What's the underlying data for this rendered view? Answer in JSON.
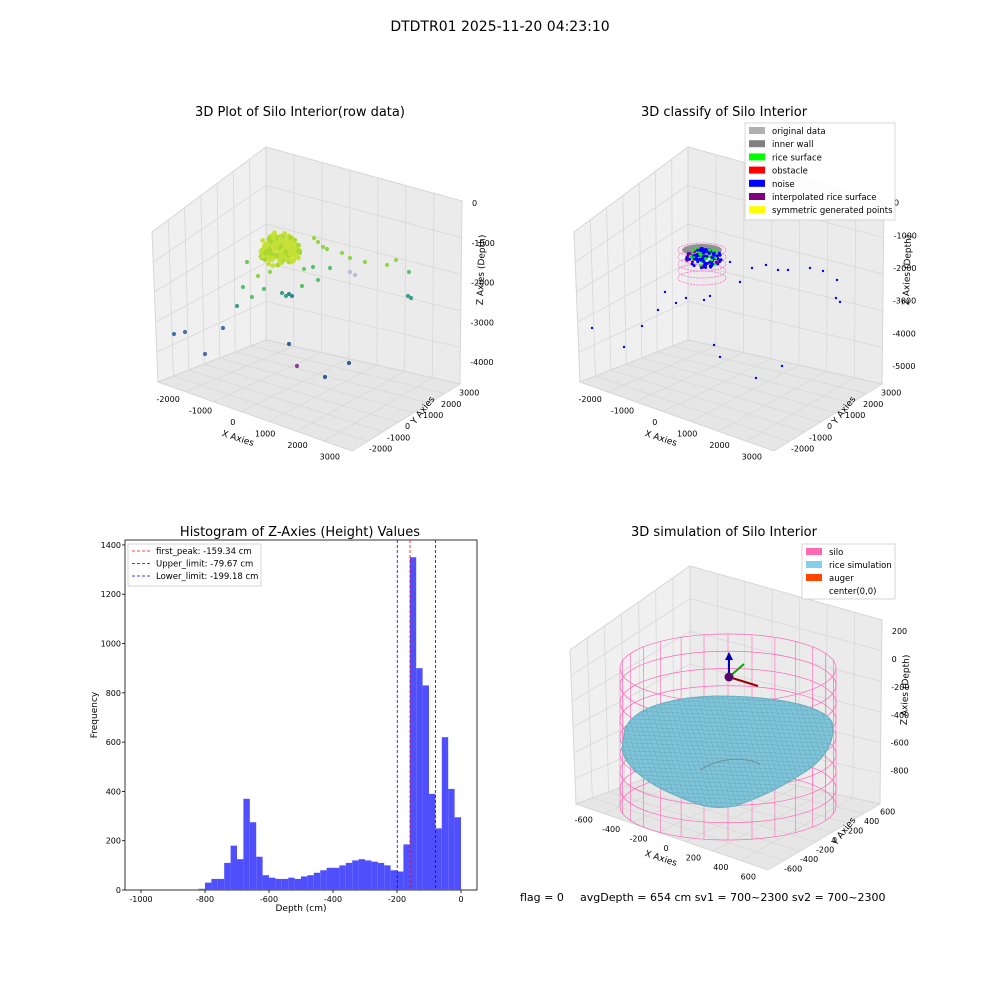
{
  "figure": {
    "suptitle": "DTDTR01 2025-11-20 04:23:10",
    "status_flag": "flag = 0",
    "status_avg": "avgDepth = 654 cm  sv1 = 700~2300  sv2 = 700~2300"
  },
  "chart_data": [
    {
      "type": "scatter",
      "subtype": "3d-scatter",
      "title": "3D Plot of Silo Interior(row data)",
      "xlabel": "X Axies",
      "ylabel": "Y Axies",
      "zlabel": "Z Axies (Depth)",
      "xticks": [
        "-2000",
        "-1000",
        "0",
        "1000",
        "2000",
        "3000"
      ],
      "yticks": [
        "-2000",
        "-1000",
        "0",
        "1000",
        "2000",
        "3000"
      ],
      "zticks": [
        "0",
        "-1000",
        "-2000",
        "-3000",
        "-4000"
      ],
      "colormap": "viridis",
      "cluster_color": "#c6e03a"
    },
    {
      "type": "scatter",
      "subtype": "3d-scatter",
      "title": "3D classify of Silo Interior",
      "xlabel": "X Axies",
      "ylabel": "Y Axies",
      "zlabel": "Z Axies (Depth)",
      "xticks": [
        "-2000",
        "-1000",
        "0",
        "1000",
        "2000",
        "3000"
      ],
      "yticks": [
        "-2000",
        "-1000",
        "0",
        "1000",
        "2000",
        "3000"
      ],
      "zticks": [
        "0",
        "-1000",
        "-2000",
        "-3000",
        "-4000",
        "-5000"
      ],
      "legend_position": "top-right",
      "legend": [
        {
          "name": "original data",
          "color": "#b0b0b0"
        },
        {
          "name": "inner wall",
          "color": "#808080"
        },
        {
          "name": "rice surface",
          "color": "#00ff00"
        },
        {
          "name": "obstacle",
          "color": "#ff0000"
        },
        {
          "name": "noise",
          "color": "#0000ff"
        },
        {
          "name": "interpolated rice surface",
          "color": "#800080"
        },
        {
          "name": "symmetric generated points",
          "color": "#ffff00"
        }
      ]
    },
    {
      "type": "bar",
      "subtype": "histogram",
      "title": "Histogram of Z-Axies (Height) Values",
      "xlabel": "Depth (cm)",
      "ylabel": "Frequency",
      "xlim": [
        -1050,
        50
      ],
      "ylim": [
        0,
        1420
      ],
      "xticks": [
        -1000,
        -800,
        -600,
        -400,
        -200,
        0
      ],
      "yticks": [
        0,
        200,
        400,
        600,
        800,
        1000,
        1200,
        1400
      ],
      "bar_color": "#4f4ffc",
      "bin_width": 20,
      "bins": [
        {
          "x": -820,
          "value": 5
        },
        {
          "x": -800,
          "value": 30
        },
        {
          "x": -780,
          "value": 45
        },
        {
          "x": -760,
          "value": 45
        },
        {
          "x": -740,
          "value": 110
        },
        {
          "x": -720,
          "value": 180
        },
        {
          "x": -700,
          "value": 125
        },
        {
          "x": -680,
          "value": 370
        },
        {
          "x": -660,
          "value": 275
        },
        {
          "x": -640,
          "value": 135
        },
        {
          "x": -620,
          "value": 60
        },
        {
          "x": -600,
          "value": 50
        },
        {
          "x": -580,
          "value": 45
        },
        {
          "x": -560,
          "value": 45
        },
        {
          "x": -540,
          "value": 50
        },
        {
          "x": -520,
          "value": 45
        },
        {
          "x": -500,
          "value": 55
        },
        {
          "x": -480,
          "value": 60
        },
        {
          "x": -460,
          "value": 70
        },
        {
          "x": -440,
          "value": 80
        },
        {
          "x": -420,
          "value": 90
        },
        {
          "x": -400,
          "value": 90
        },
        {
          "x": -380,
          "value": 100
        },
        {
          "x": -360,
          "value": 110
        },
        {
          "x": -340,
          "value": 120
        },
        {
          "x": -320,
          "value": 125
        },
        {
          "x": -300,
          "value": 120
        },
        {
          "x": -280,
          "value": 115
        },
        {
          "x": -260,
          "value": 110
        },
        {
          "x": -240,
          "value": 100
        },
        {
          "x": -220,
          "value": 80
        },
        {
          "x": -200,
          "value": 75
        },
        {
          "x": -180,
          "value": 185
        },
        {
          "x": -160,
          "value": 1350
        },
        {
          "x": -140,
          "value": 900
        },
        {
          "x": -120,
          "value": 830
        },
        {
          "x": -100,
          "value": 390
        },
        {
          "x": -80,
          "value": 250
        },
        {
          "x": -60,
          "value": 620
        },
        {
          "x": -40,
          "value": 410
        },
        {
          "x": -20,
          "value": 295
        }
      ],
      "vlines": [
        {
          "name": "first_peak",
          "label": "first_peak: -159.34 cm",
          "x": -159.34,
          "color": "#ff0000"
        },
        {
          "name": "Upper_limit",
          "label": "Upper_limit: -79.67 cm",
          "x": -79.67,
          "color": "#0000ff"
        },
        {
          "name": "Lower_limit",
          "label": "Lower_limit: -199.18 cm",
          "x": -199.18,
          "color": "#0000ff"
        }
      ],
      "legend_position": "top-left"
    },
    {
      "type": "scatter",
      "subtype": "3d-surface",
      "title": "3D simulation of Silo Interior",
      "xlabel": "X Axies",
      "ylabel": "Y Axies",
      "zlabel": "Z Axies (Depth)",
      "xticks": [
        "-600",
        "-400",
        "-200",
        "0",
        "200",
        "400",
        "600"
      ],
      "yticks": [
        "-600",
        "-400",
        "-200",
        "0",
        "200",
        "400",
        "600"
      ],
      "zticks": [
        "200",
        "0",
        "-200",
        "-400",
        "-600",
        "-800"
      ],
      "legend_position": "top-right",
      "legend": [
        {
          "name": "silo",
          "color": "#ff69b4"
        },
        {
          "name": "rice simulation",
          "color": "#87ceeb"
        },
        {
          "name": "auger",
          "color": "#ff4500"
        },
        {
          "name": "center(0,0)",
          "color": "#ffffff"
        }
      ]
    }
  ]
}
